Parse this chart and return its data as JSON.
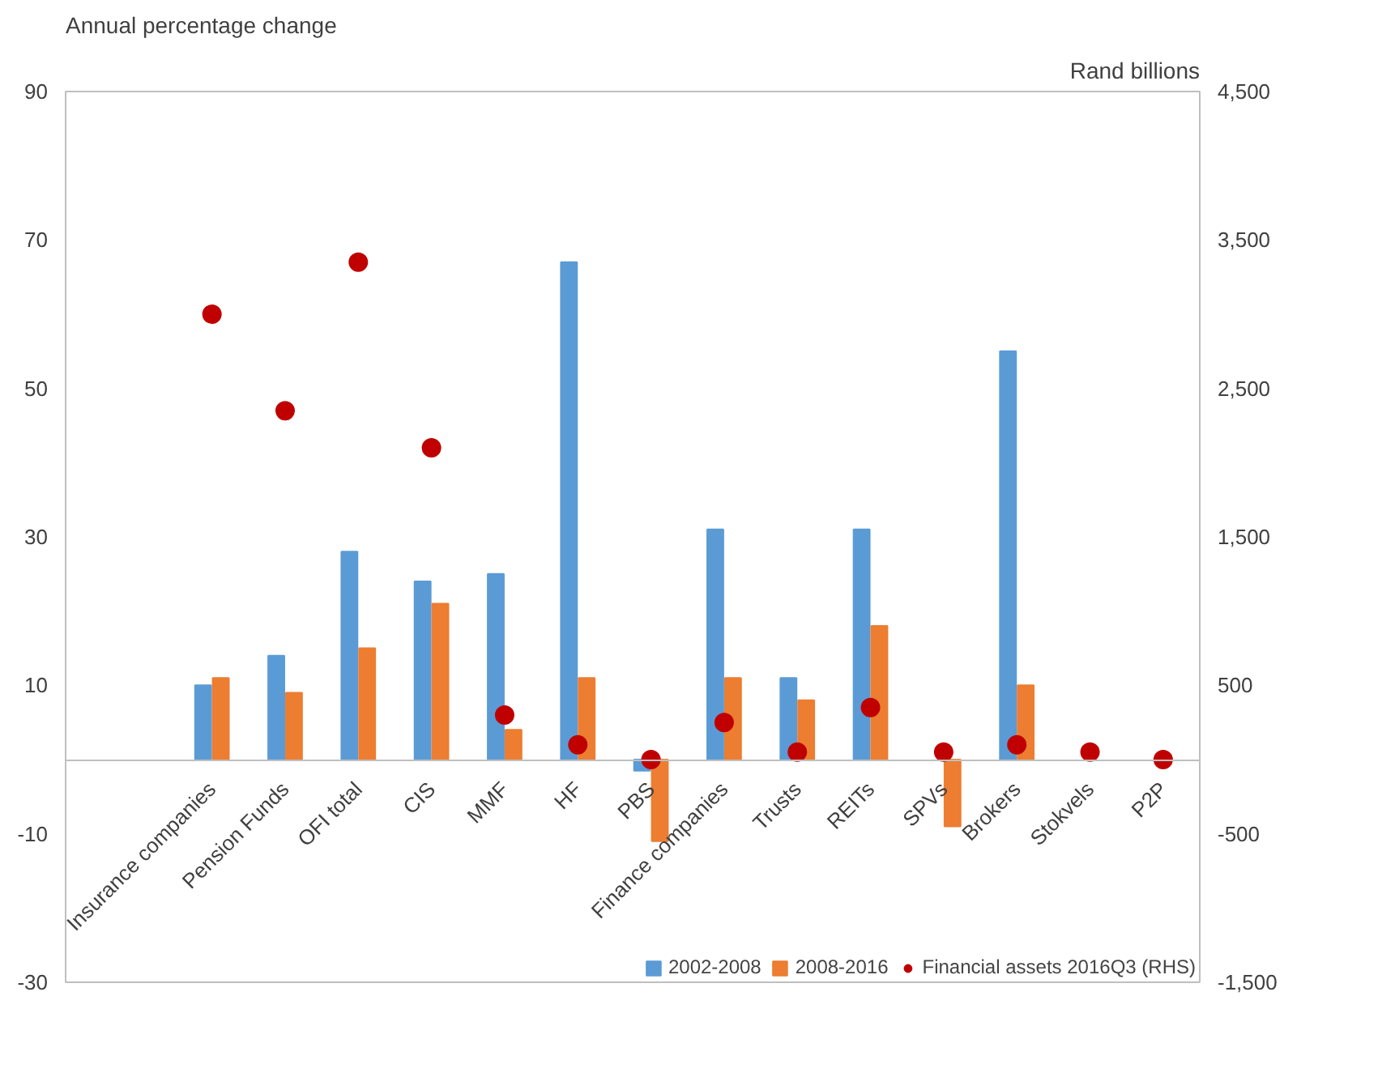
{
  "chart_data": {
    "type": "bar",
    "ylabel": "Annual percentage  change",
    "y2label": "Rand billions",
    "categories": [
      "Insurance companies",
      "Pension Funds",
      "OFI total",
      "CIS",
      "MMF",
      "HF",
      "PBS",
      "Finance companies",
      "Trusts",
      "REITs",
      "SPVs",
      "Brokers",
      "Stokvels",
      "P2P"
    ],
    "series": [
      {
        "name": "2002-2008",
        "color": "#5b9bd5",
        "values": [
          10,
          14,
          28,
          24,
          25,
          67,
          -1.5,
          31,
          11,
          31,
          null,
          55,
          null,
          null
        ]
      },
      {
        "name": "2008-2016",
        "color": "#ed7d31",
        "values": [
          11,
          9,
          15,
          21,
          4,
          11,
          -11,
          11,
          8,
          18,
          -9,
          10,
          null,
          null
        ]
      },
      {
        "name": "Financial assets 2016Q3 (RHS)",
        "color": "#c00000",
        "type": "scatter",
        "axis": "y2",
        "marker": "circle",
        "values": [
          3000,
          2350,
          3350,
          2100,
          300,
          100,
          0,
          250,
          50,
          350,
          50,
          100,
          50,
          0
        ]
      }
    ],
    "ylim": [
      -30,
      90
    ],
    "yticks": [
      -30,
      -10,
      10,
      30,
      50,
      70,
      90
    ],
    "y2lim": [
      -1500,
      4500
    ],
    "y2ticks": [
      {
        "value": -1500,
        "label": "-1,500"
      },
      -500,
      500,
      {
        "value": 1500,
        "label": "1,500"
      },
      {
        "value": 2500,
        "label": "2,500"
      },
      {
        "value": 3500,
        "label": "3,500"
      },
      {
        "value": 4500,
        "label": "4,500"
      }
    ],
    "grid": false,
    "legend": "bottom"
  }
}
